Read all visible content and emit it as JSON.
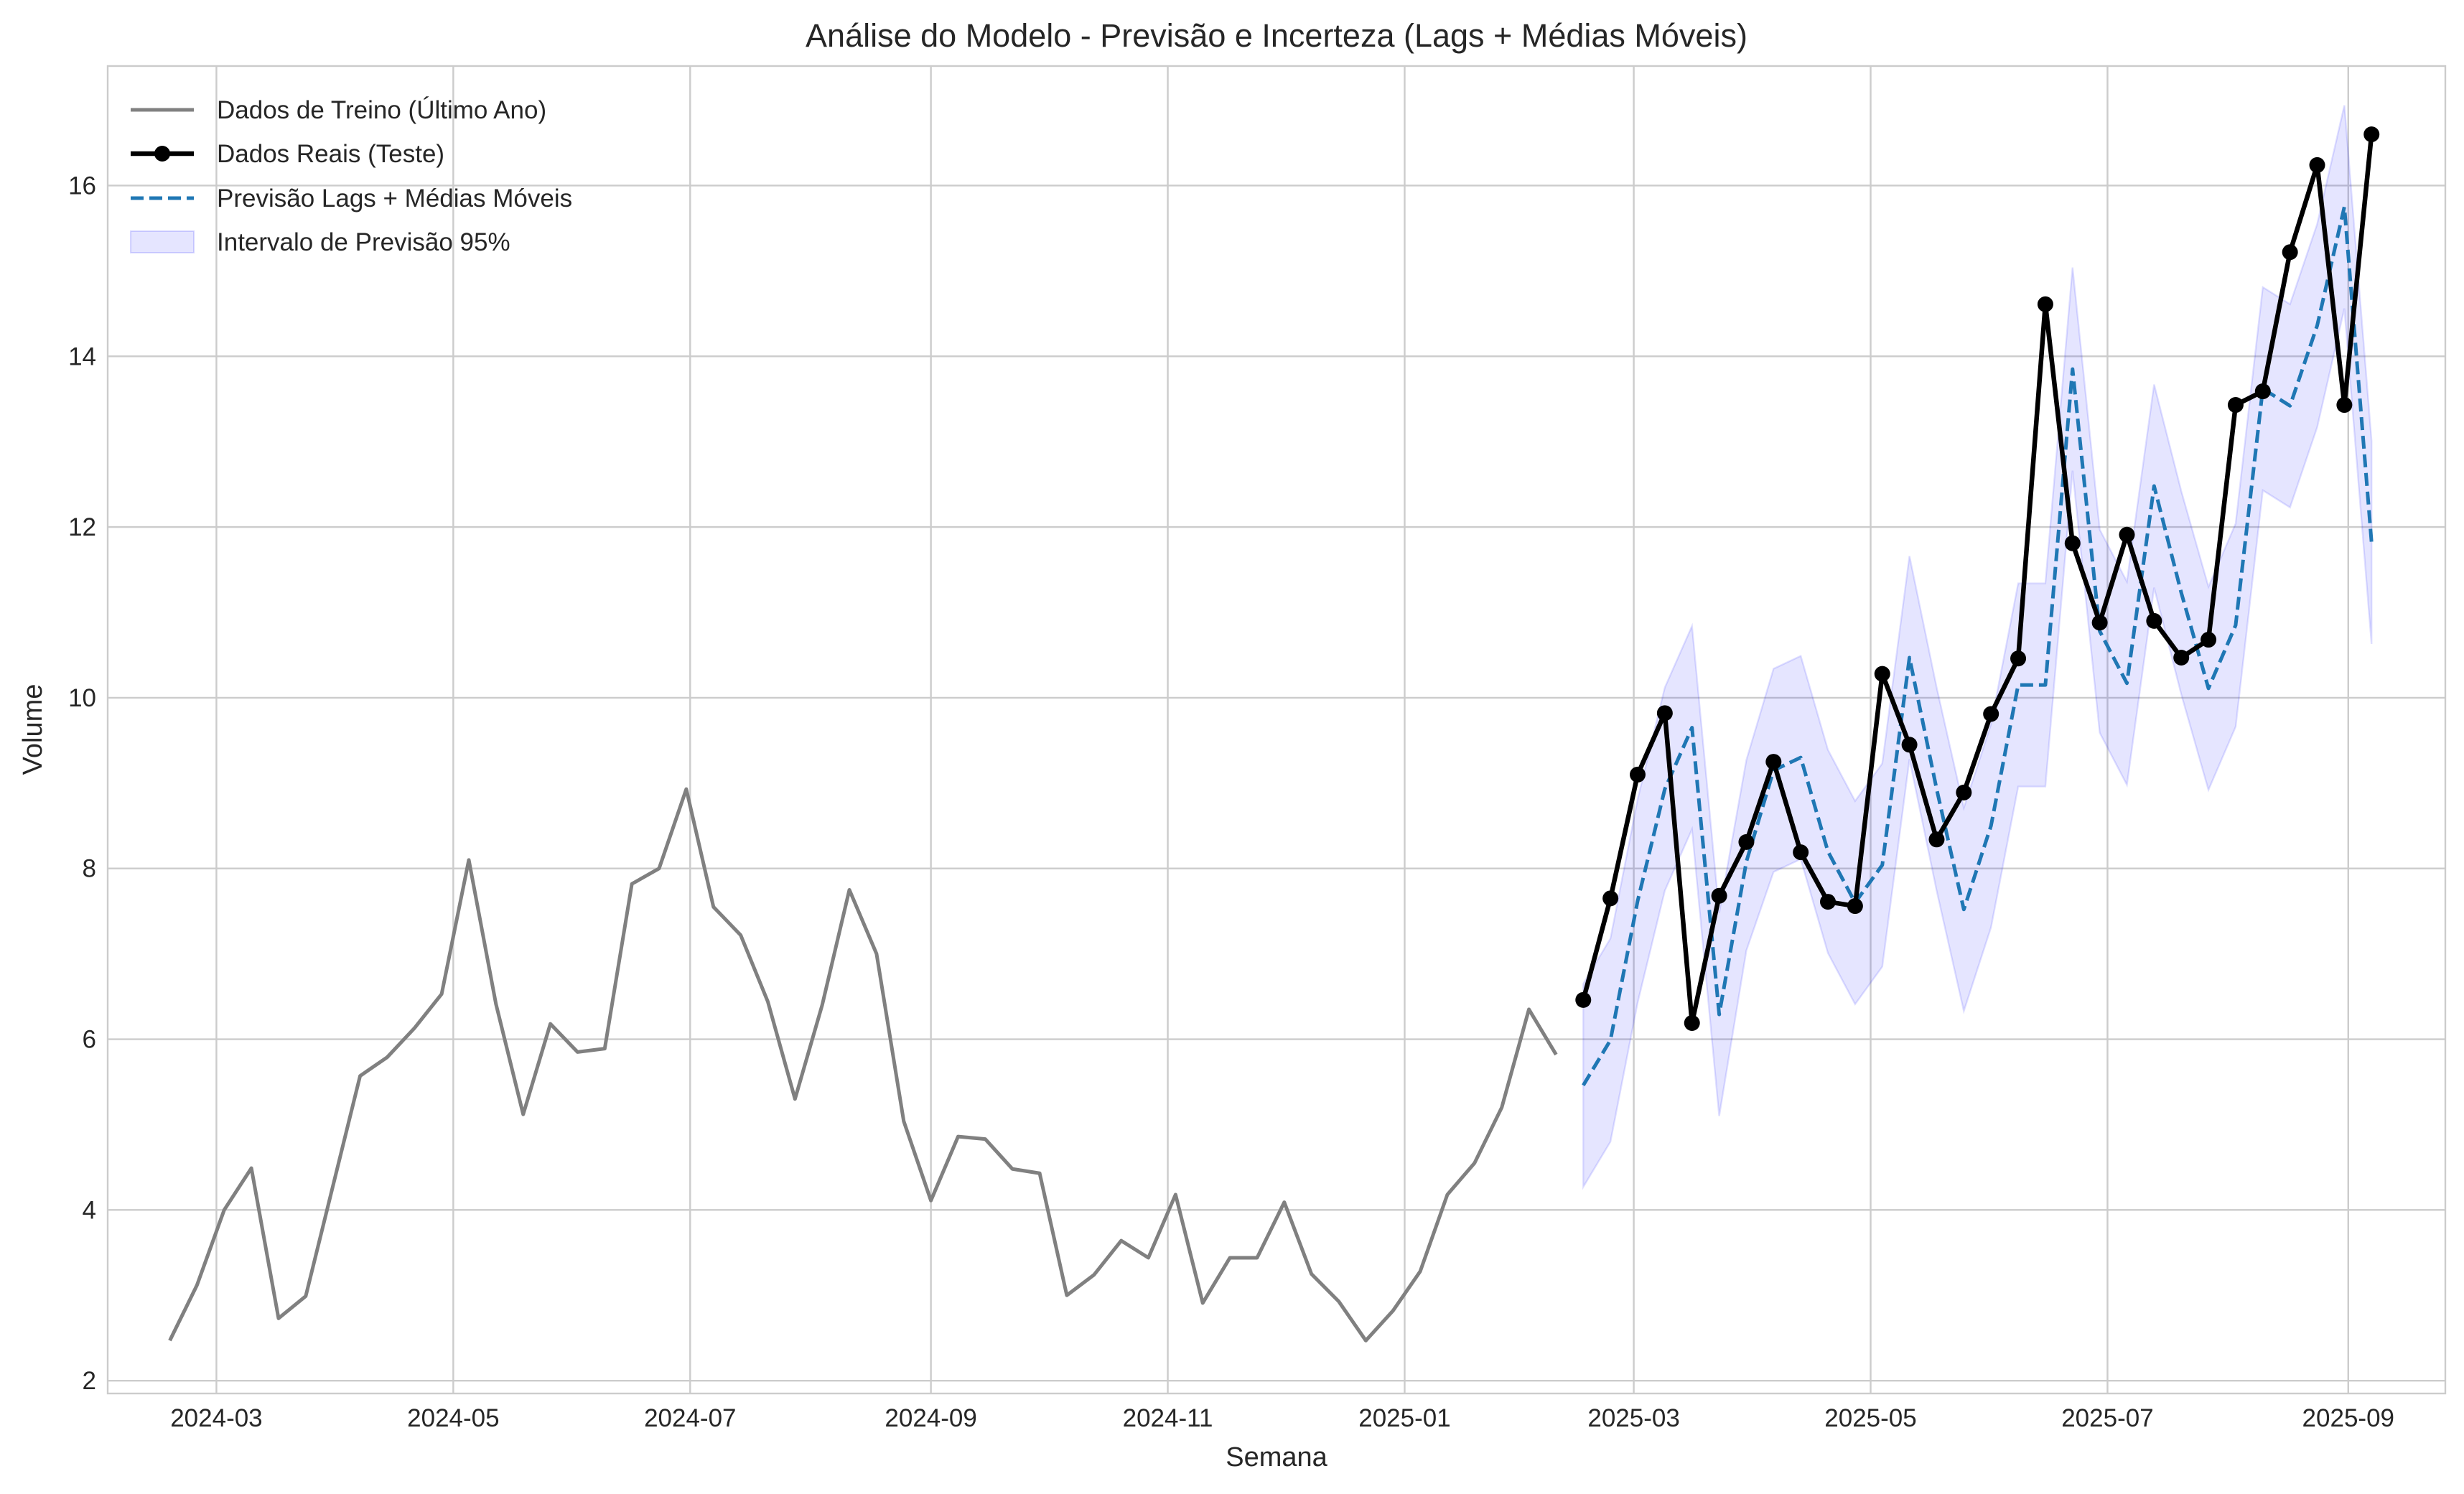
{
  "chart_data": {
    "type": "line",
    "title": "Análise do Modelo - Previsão e Incerteza (Lags + Médias Móveis)",
    "xlabel": "Semana",
    "ylabel": "Volume",
    "xlim": [
      "2024-02-02",
      "2025-09-26"
    ],
    "ylim": [
      1.85,
      17.4
    ],
    "x_ticks": [
      "2024-03",
      "2024-05",
      "2024-07",
      "2024-09",
      "2024-11",
      "2025-01",
      "2025-03",
      "2025-05",
      "2025-07",
      "2025-09"
    ],
    "y_ticks": [
      2,
      4,
      6,
      8,
      10,
      12,
      14,
      16
    ],
    "grid": true,
    "legend_position": "top-left",
    "colors": {
      "train": "#808080",
      "actual": "#000000",
      "forecast": "#1f77b4",
      "interval": "#0000ff"
    },
    "legend": [
      {
        "label": "Dados de Treino (Último Ano)",
        "style": "train"
      },
      {
        "label": "Dados Reais (Teste)",
        "style": "actual"
      },
      {
        "label": "Previsão Lags + Médias Móveis",
        "style": "forecast"
      },
      {
        "label": "Intervalo de Previsão 95%",
        "style": "interval"
      }
    ],
    "series": [
      {
        "name": "Dados de Treino (Último Ano)",
        "x": [
          "2024-02-18",
          "2024-02-25",
          "2024-03-03",
          "2024-03-10",
          "2024-03-17",
          "2024-03-24",
          "2024-03-31",
          "2024-04-07",
          "2024-04-14",
          "2024-04-21",
          "2024-04-28",
          "2024-05-05",
          "2024-05-12",
          "2024-05-19",
          "2024-05-26",
          "2024-06-02",
          "2024-06-09",
          "2024-06-16",
          "2024-06-23",
          "2024-06-30",
          "2024-07-07",
          "2024-07-14",
          "2024-07-21",
          "2024-07-28",
          "2024-08-04",
          "2024-08-11",
          "2024-08-18",
          "2024-08-25",
          "2024-09-01",
          "2024-09-08",
          "2024-09-15",
          "2024-09-22",
          "2024-09-29",
          "2024-10-06",
          "2024-10-13",
          "2024-10-20",
          "2024-10-27",
          "2024-11-03",
          "2024-11-10",
          "2024-11-17",
          "2024-11-24",
          "2024-12-01",
          "2024-12-08",
          "2024-12-15",
          "2024-12-22",
          "2024-12-29",
          "2025-01-05",
          "2025-01-12",
          "2025-01-19",
          "2025-01-26",
          "2025-02-02",
          "2025-02-09"
        ],
        "values": [
          2.47,
          3.12,
          4.0,
          4.49,
          2.73,
          2.99,
          4.28,
          5.57,
          5.79,
          6.13,
          6.53,
          8.1,
          6.41,
          5.12,
          6.18,
          5.85,
          5.89,
          7.82,
          8.0,
          8.93,
          7.55,
          7.22,
          6.44,
          5.3,
          6.4,
          7.75,
          7.0,
          5.04,
          4.11,
          4.86,
          4.83,
          4.48,
          4.43,
          3.0,
          3.24,
          3.64,
          3.44,
          4.18,
          2.91,
          3.44,
          3.44,
          4.09,
          3.25,
          2.93,
          2.47,
          2.82,
          3.28,
          4.18,
          4.55,
          5.2,
          6.35,
          5.82
        ]
      },
      {
        "name": "Dados Reais (Teste)",
        "x": [
          "2025-02-16",
          "2025-02-23",
          "2025-03-02",
          "2025-03-09",
          "2025-03-16",
          "2025-03-23",
          "2025-03-30",
          "2025-04-06",
          "2025-04-13",
          "2025-04-20",
          "2025-04-27",
          "2025-05-04",
          "2025-05-11",
          "2025-05-18",
          "2025-05-25",
          "2025-06-01",
          "2025-06-08",
          "2025-06-15",
          "2025-06-22",
          "2025-06-29",
          "2025-07-06",
          "2025-07-13",
          "2025-07-20",
          "2025-07-27",
          "2025-08-03",
          "2025-08-10",
          "2025-08-17",
          "2025-08-24",
          "2025-08-31",
          "2025-09-07"
        ],
        "values": [
          6.46,
          7.65,
          9.1,
          9.82,
          6.19,
          7.68,
          8.31,
          9.25,
          8.19,
          7.61,
          7.56,
          10.28,
          9.45,
          8.34,
          8.89,
          9.81,
          10.46,
          14.61,
          11.81,
          10.88,
          11.91,
          10.9,
          10.47,
          10.68,
          13.43,
          13.59,
          15.22,
          16.24,
          13.43,
          16.6
        ]
      },
      {
        "name": "Previsão Lags + Médias Móveis",
        "x": [
          "2025-02-16",
          "2025-02-23",
          "2025-03-02",
          "2025-03-09",
          "2025-03-16",
          "2025-03-23",
          "2025-03-30",
          "2025-04-06",
          "2025-04-13",
          "2025-04-20",
          "2025-04-27",
          "2025-05-04",
          "2025-05-11",
          "2025-05-18",
          "2025-05-25",
          "2025-06-01",
          "2025-06-08",
          "2025-06-15",
          "2025-06-22",
          "2025-06-29",
          "2025-07-06",
          "2025-07-13",
          "2025-07-20",
          "2025-07-27",
          "2025-08-03",
          "2025-08-10",
          "2025-08-17",
          "2025-08-24",
          "2025-08-31",
          "2025-09-07"
        ],
        "values": [
          5.46,
          5.99,
          7.62,
          8.93,
          9.65,
          6.29,
          8.08,
          9.15,
          9.3,
          8.2,
          7.6,
          8.04,
          10.47,
          8.93,
          7.52,
          8.5,
          10.15,
          10.15,
          13.85,
          10.78,
          10.17,
          12.48,
          11.23,
          10.11,
          10.85,
          13.62,
          13.42,
          14.36,
          15.75,
          11.82
        ]
      },
      {
        "name": "Intervalo de Previsão 95%",
        "x": [
          "2025-02-16",
          "2025-02-23",
          "2025-03-02",
          "2025-03-09",
          "2025-03-16",
          "2025-03-23",
          "2025-03-30",
          "2025-04-06",
          "2025-04-13",
          "2025-04-20",
          "2025-04-27",
          "2025-05-04",
          "2025-05-11",
          "2025-05-18",
          "2025-05-25",
          "2025-06-01",
          "2025-06-08",
          "2025-06-15",
          "2025-06-22",
          "2025-06-29",
          "2025-07-06",
          "2025-07-13",
          "2025-07-20",
          "2025-07-27",
          "2025-08-03",
          "2025-08-10",
          "2025-08-17",
          "2025-08-24",
          "2025-08-31",
          "2025-09-07"
        ],
        "lower": [
          4.27,
          4.8,
          6.43,
          7.74,
          8.46,
          5.1,
          7.04,
          7.96,
          8.11,
          7.01,
          6.41,
          6.85,
          9.28,
          7.74,
          6.33,
          7.31,
          8.96,
          8.96,
          12.66,
          9.59,
          8.98,
          11.29,
          10.04,
          8.92,
          9.66,
          12.43,
          12.23,
          13.17,
          14.56,
          10.63
        ],
        "upper": [
          6.65,
          7.18,
          8.81,
          10.12,
          10.84,
          7.48,
          9.27,
          10.34,
          10.49,
          9.39,
          8.79,
          9.23,
          11.66,
          10.12,
          8.71,
          9.69,
          11.34,
          11.34,
          15.04,
          11.97,
          11.36,
          13.67,
          12.42,
          11.3,
          12.04,
          14.81,
          14.61,
          15.55,
          16.94,
          13.01
        ]
      }
    ]
  }
}
